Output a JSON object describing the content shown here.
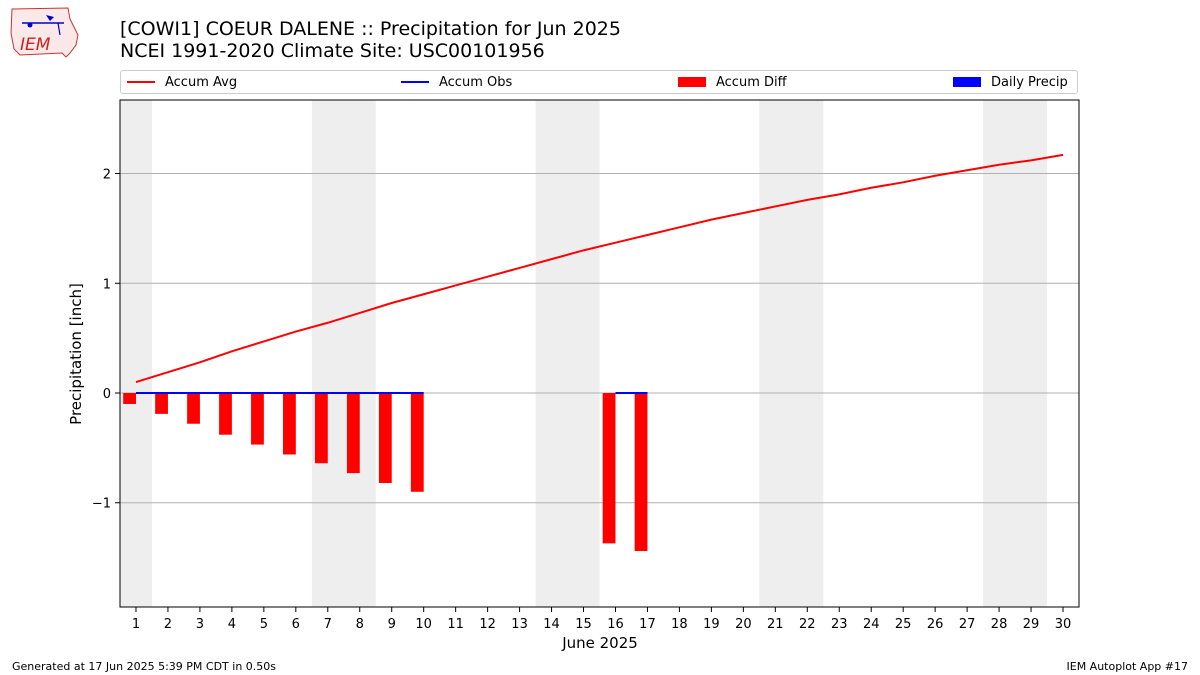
{
  "logo": {
    "text": "IEM"
  },
  "title": {
    "line1": "[COWI1] COEUR DALENE :: Precipitation for Jun 2025",
    "line2": "NCEI 1991-2020 Climate Site: USC00101956"
  },
  "legend": [
    {
      "label": "Accum Avg",
      "color": "#ff0000",
      "kind": "line"
    },
    {
      "label": "Accum Obs",
      "color": "#0000ff",
      "kind": "line"
    },
    {
      "label": "Accum Diff",
      "color": "#ff0000",
      "kind": "box"
    },
    {
      "label": "Daily Precip",
      "color": "#0000ff",
      "kind": "box"
    }
  ],
  "footer": {
    "left": "Generated at 17 Jun 2025 5:39 PM CDT in 0.50s",
    "right": "IEM Autoplot App #17"
  },
  "chart_data": {
    "type": "bar",
    "xlabel": "June 2025",
    "ylabel": "Precipitation [inch]",
    "xlim": [
      0.5,
      30.5
    ],
    "ylim": [
      -1.95,
      2.67
    ],
    "yticks": [
      -1,
      0,
      1,
      2
    ],
    "ytick_labels": [
      "−1",
      "0",
      "1",
      "2"
    ],
    "xticks": [
      1,
      2,
      3,
      4,
      5,
      6,
      7,
      8,
      9,
      10,
      11,
      12,
      13,
      14,
      15,
      16,
      17,
      18,
      19,
      20,
      21,
      22,
      23,
      24,
      25,
      26,
      27,
      28,
      29,
      30
    ],
    "grid": "horizontal",
    "legend_position": "top",
    "weekend_shading": [
      [
        0.5,
        1.5
      ],
      [
        6.5,
        8.5
      ],
      [
        13.5,
        15.5
      ],
      [
        20.5,
        22.5
      ],
      [
        27.5,
        29.5
      ]
    ],
    "shade_color": "#eeeeee",
    "series": [
      {
        "name": "Accum Avg",
        "kind": "line",
        "color": "#ff0000",
        "x": [
          1,
          2,
          3,
          4,
          5,
          6,
          7,
          8,
          9,
          10,
          11,
          12,
          13,
          14,
          15,
          16,
          17,
          18,
          19,
          20,
          21,
          22,
          23,
          24,
          25,
          26,
          27,
          28,
          29,
          30
        ],
        "values": [
          0.1,
          0.19,
          0.28,
          0.38,
          0.47,
          0.56,
          0.64,
          0.73,
          0.82,
          0.9,
          0.98,
          1.06,
          1.14,
          1.22,
          1.3,
          1.37,
          1.44,
          1.51,
          1.58,
          1.64,
          1.7,
          1.76,
          1.81,
          1.87,
          1.92,
          1.98,
          2.03,
          2.08,
          2.12,
          2.17
        ]
      },
      {
        "name": "Accum Obs",
        "kind": "line",
        "color": "#0000ff",
        "x": [
          1,
          2,
          3,
          4,
          5,
          6,
          7,
          8,
          9,
          10,
          16,
          17
        ],
        "values": [
          0,
          0,
          0,
          0,
          0,
          0,
          0,
          0,
          0,
          0,
          0,
          0
        ],
        "segments": [
          [
            1,
            10
          ],
          [
            16,
            17
          ]
        ]
      },
      {
        "name": "Accum Diff",
        "kind": "bar",
        "color": "#ff0000",
        "x": [
          1,
          2,
          3,
          4,
          5,
          6,
          7,
          8,
          9,
          10,
          16,
          17
        ],
        "values": [
          -0.1,
          -0.19,
          -0.28,
          -0.38,
          -0.47,
          -0.56,
          -0.64,
          -0.73,
          -0.82,
          -0.9,
          -1.37,
          -1.44
        ]
      },
      {
        "name": "Daily Precip",
        "kind": "bar",
        "color": "#0000ff",
        "x": [
          1,
          2,
          3,
          4,
          5,
          6,
          7,
          8,
          9,
          10,
          16,
          17
        ],
        "values": [
          0,
          0,
          0,
          0,
          0,
          0,
          0,
          0,
          0,
          0,
          0,
          0
        ]
      }
    ]
  }
}
